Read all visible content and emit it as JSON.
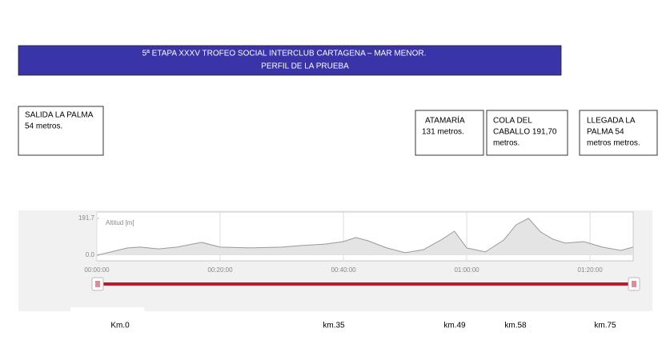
{
  "header": {
    "lines": [
      "5ª ETAPA XXXV TROFEO SOCIAL INTERCLUB CARTAGENA – MAR MENOR.",
      "PERFIL DE LA PRUEBA"
    ]
  },
  "boxes": [
    {
      "lines": [
        "SALIDA LA PALMA",
        "54 metros."
      ]
    },
    {
      "lines": [
        "ATAMARÍA",
        "131 metros."
      ]
    },
    {
      "lines": [
        "COLA DEL",
        "CABALLO  191,70",
        "metros."
      ]
    },
    {
      "lines": [
        "LLEGADA  LA",
        "PALMA  54",
        "metros metros."
      ]
    }
  ],
  "chart_data": {
    "type": "area",
    "ylabel": "Altitud [m]",
    "color": "#999999",
    "x": [
      0,
      5,
      7,
      10,
      13,
      17,
      20,
      25,
      30,
      33,
      37,
      40,
      42,
      44,
      47,
      50,
      53,
      56,
      58,
      60,
      63,
      66,
      68,
      70,
      72,
      74,
      76,
      79,
      82,
      85,
      87
    ],
    "values": [
      0,
      38,
      42,
      33,
      42,
      67,
      42,
      38,
      42,
      50,
      58,
      71,
      92,
      75,
      38,
      13,
      29,
      83,
      125,
      38,
      17,
      79,
      158,
      192,
      121,
      83,
      63,
      71,
      42,
      25,
      42
    ],
    "xlim": [
      0,
      87
    ],
    "ylim": [
      0,
      191.7
    ],
    "xticks": [
      {
        "value": 0,
        "label": "00:00:00"
      },
      {
        "value": 20,
        "label": "00:20:00"
      },
      {
        "value": 40,
        "label": "00:40:00"
      },
      {
        "value": 60,
        "label": "01:00:00"
      },
      {
        "value": 80,
        "label": "01:20:00"
      }
    ],
    "yticks": [
      {
        "value": 0,
        "label": "0.0"
      },
      191.7
    ],
    "grid": true
  },
  "km_labels": [
    "Km.0",
    "km.35",
    "km.49",
    "km.58",
    "km.75"
  ]
}
